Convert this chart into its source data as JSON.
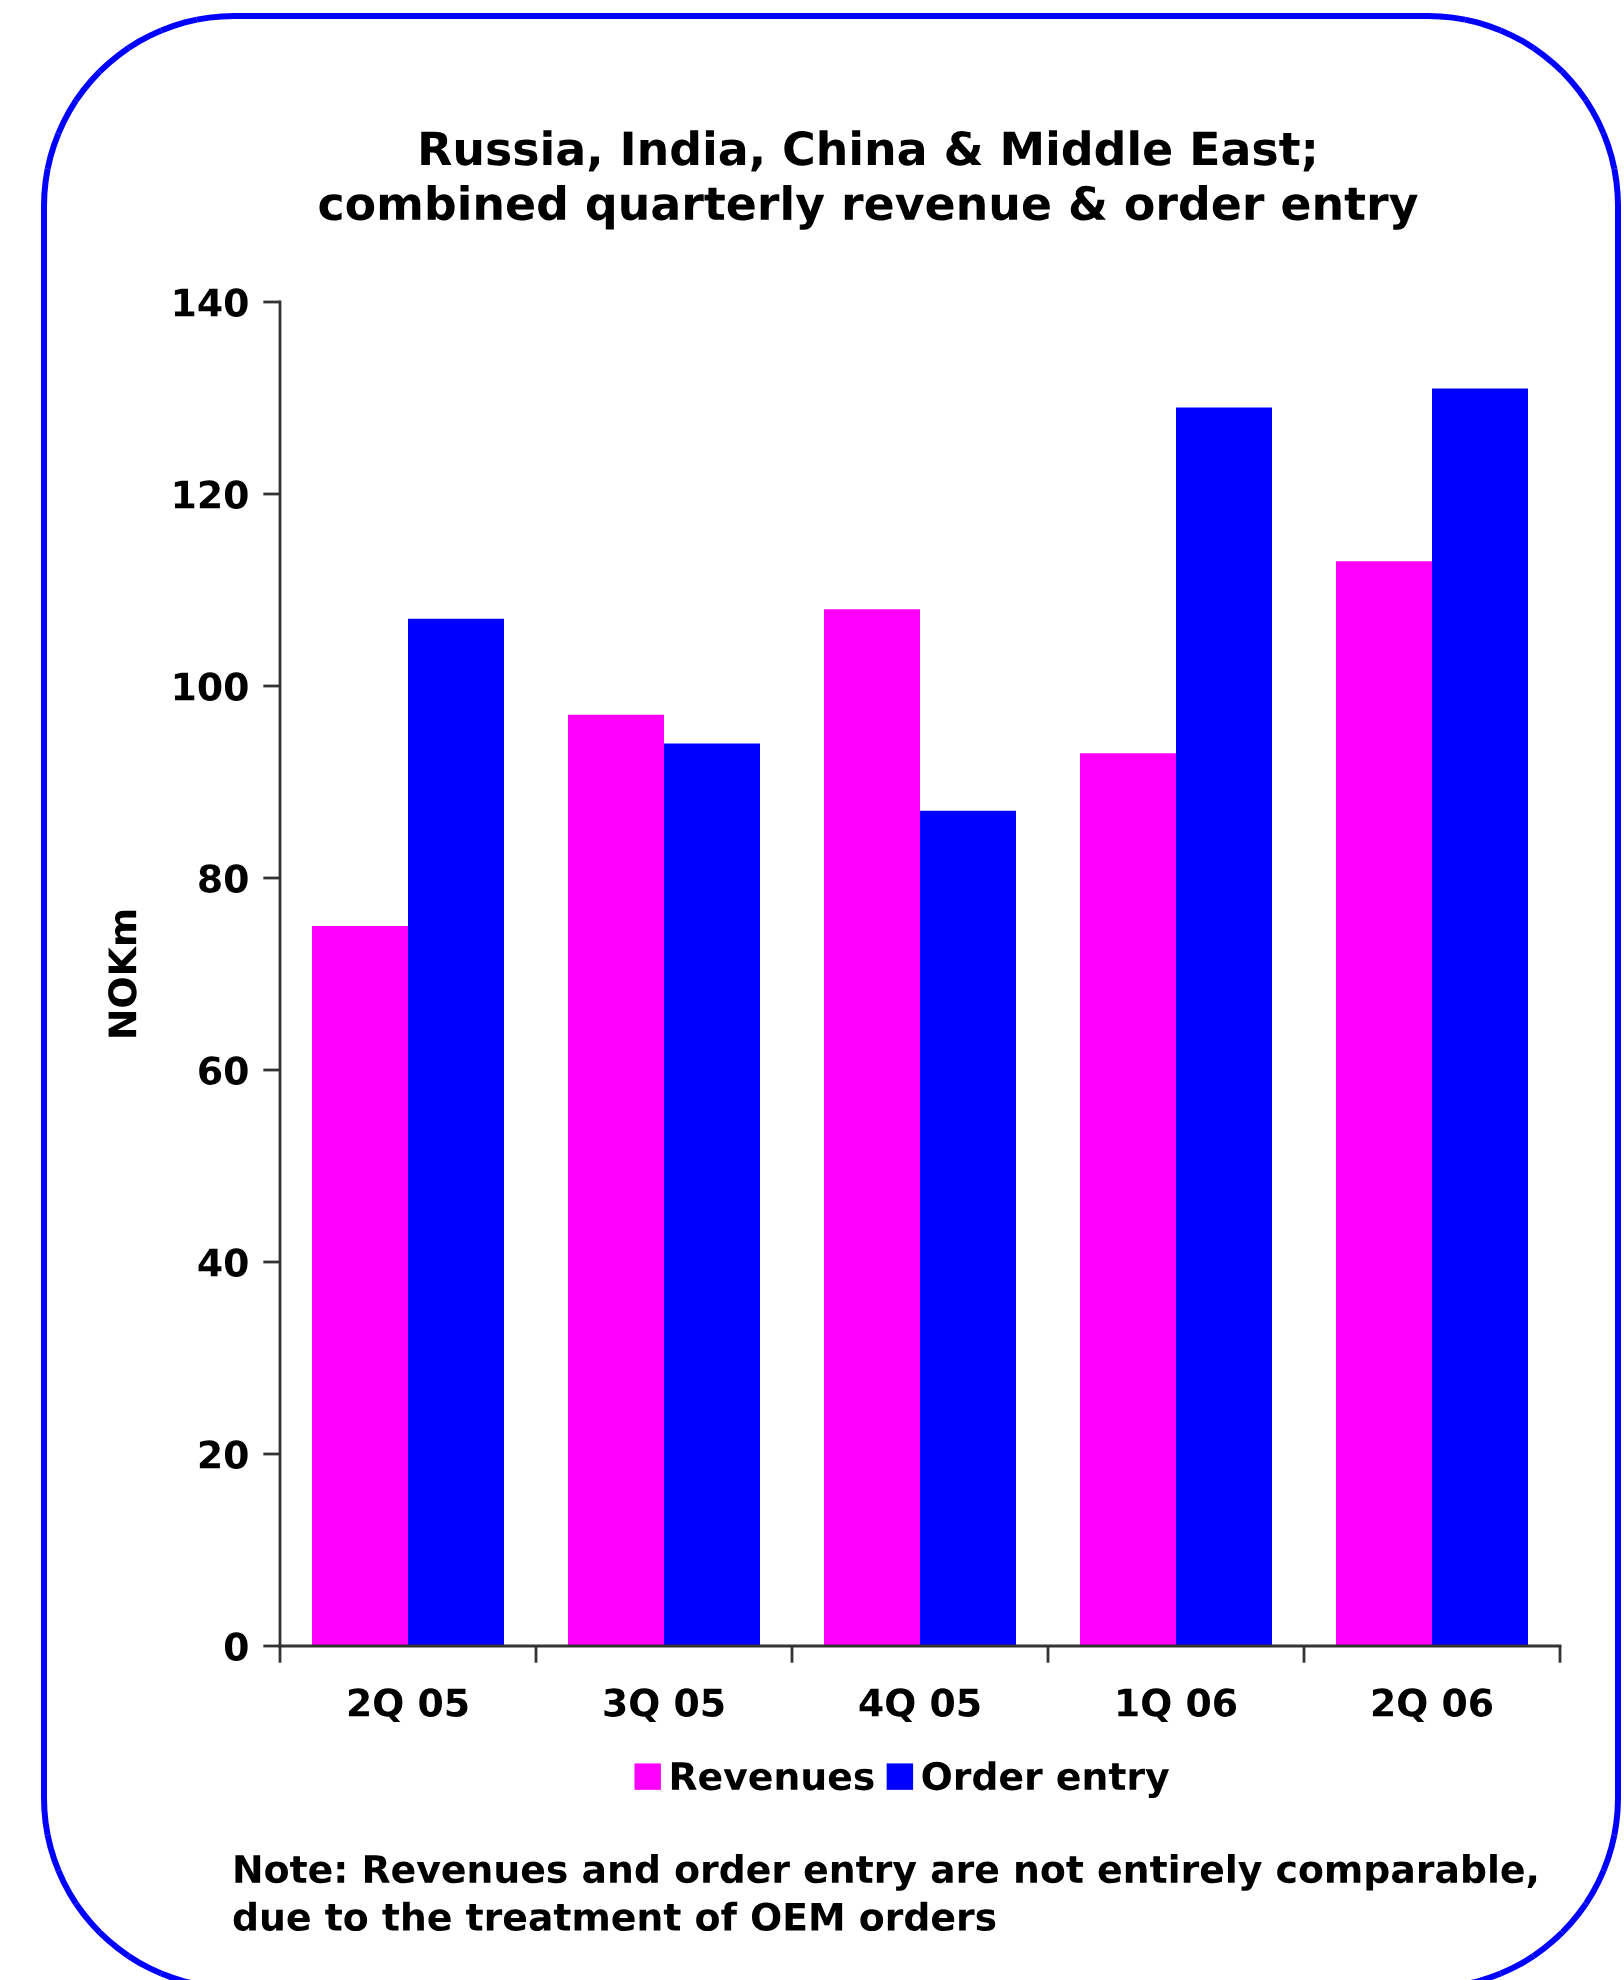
{
  "chart_data": {
    "type": "bar",
    "title": "Russia, India, China & Middle East;\ncombined quarterly revenue & order entry",
    "ylabel": "NOKm",
    "categories": [
      "2Q 05",
      "3Q 05",
      "4Q 05",
      "1Q 06",
      "2Q 06"
    ],
    "series": [
      {
        "name": "Revenues",
        "color": "#ff00ff",
        "values": [
          75,
          97,
          108,
          93,
          113
        ]
      },
      {
        "name": "Order entry",
        "color": "#0000ff",
        "values": [
          107,
          94,
          87,
          129,
          131
        ]
      }
    ],
    "ylim": [
      0,
      140
    ],
    "yticks": [
      0,
      20,
      40,
      60,
      80,
      100,
      120,
      140
    ],
    "legend": "bottom",
    "annotations": [
      "Note: Revenues and order entry are not entirely comparable,\ndue to the treatment of OEM orders"
    ]
  }
}
